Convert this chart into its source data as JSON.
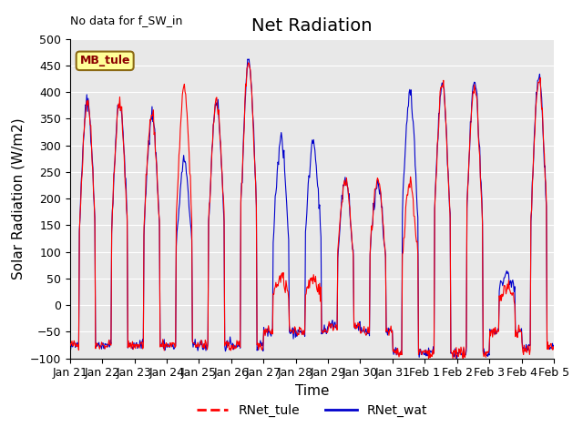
{
  "title": "Net Radiation",
  "xlabel": "Time",
  "ylabel": "Solar Radiation (W/m2)",
  "annotation": "No data for f_SW_in",
  "legend_box_label": "MB_tule",
  "legend_line1": "RNet_tule",
  "legend_line2": "RNet_wat",
  "color_tule": "#ff0000",
  "color_wat": "#0000cc",
  "ylim": [
    -100,
    500
  ],
  "yticks": [
    -100,
    -50,
    0,
    50,
    100,
    150,
    200,
    250,
    300,
    350,
    400,
    450,
    500
  ],
  "background_color": "#e8e8e8",
  "title_fontsize": 14,
  "axis_fontsize": 11,
  "tick_fontsize": 9,
  "n_days": 15,
  "n_per_day": 48,
  "tick_labels": [
    "Jan 21",
    "Jan 22",
    "Jan 23",
    "Jan 24",
    "Jan 25",
    "Jan 26",
    "Jan 27",
    "Jan 28",
    "Jan 29",
    "Jan 30",
    "Jan 31",
    "Feb 1",
    "Feb 2",
    "Feb 3",
    "Feb 4",
    "Feb 5"
  ],
  "day_peaks_tule": [
    385,
    380,
    360,
    405,
    385,
    460,
    50,
    50,
    235,
    230,
    230,
    415,
    415,
    30,
    425
  ],
  "day_peaks_wat": [
    385,
    380,
    360,
    270,
    385,
    460,
    310,
    310,
    235,
    230,
    400,
    415,
    420,
    60,
    425
  ],
  "night_vals_tule": [
    -75,
    -75,
    -75,
    -75,
    -75,
    -75,
    -50,
    -50,
    -40,
    -50,
    -90,
    -90,
    -90,
    -50,
    -80
  ],
  "night_vals_wat": [
    -75,
    -75,
    -75,
    -75,
    -75,
    -75,
    -50,
    -50,
    -40,
    -50,
    -90,
    -90,
    -90,
    -50,
    -80
  ]
}
